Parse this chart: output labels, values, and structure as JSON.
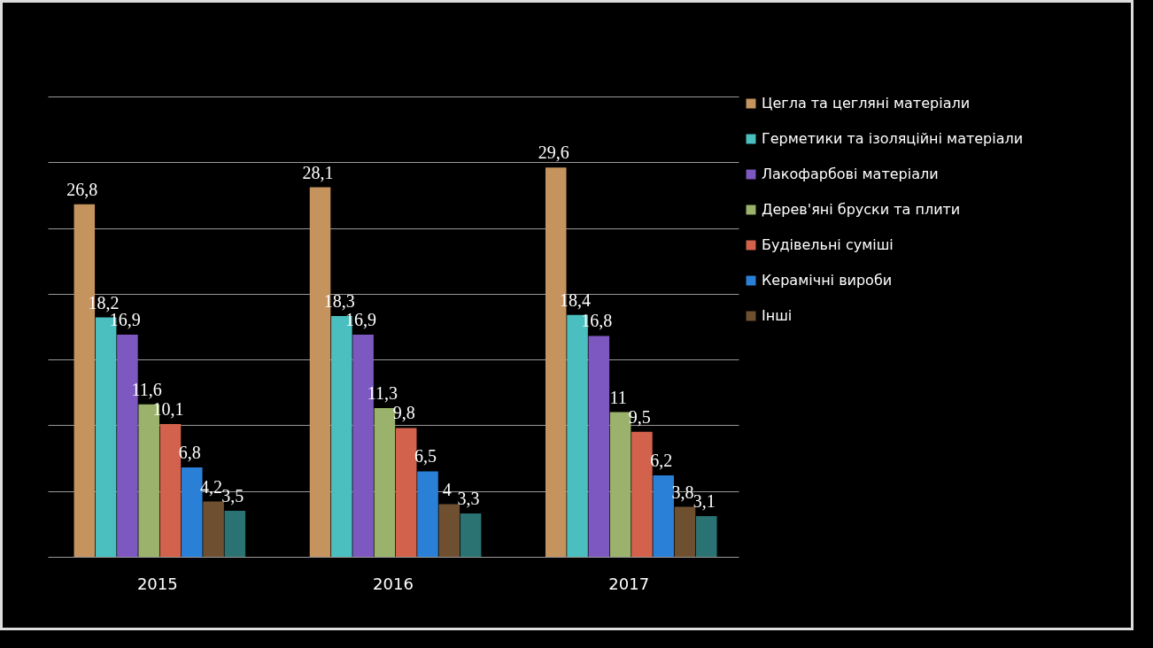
{
  "chart_data": {
    "type": "bar",
    "categories": [
      "2015",
      "2016",
      "2017"
    ],
    "series": [
      {
        "name": "Цегла та цегляні матеріали",
        "color": "#c4935e",
        "values": [
          26.8,
          28.1,
          29.6
        ],
        "value_labels": [
          "26,8",
          "28,1",
          "29,6"
        ]
      },
      {
        "name": "Герметики та ізоляційні матеріали",
        "color": "#4bbfbf",
        "values": [
          18.2,
          18.3,
          18.4
        ],
        "value_labels": [
          "18,2",
          "18,3",
          "18,4"
        ]
      },
      {
        "name": "Лакофарбові матеріали",
        "color": "#7d58c0",
        "values": [
          16.9,
          16.9,
          16.8
        ],
        "value_labels": [
          "16,9",
          "16,9",
          "16,8"
        ]
      },
      {
        "name": "Дерев'яні бруски та плити",
        "color": "#9bb26c",
        "values": [
          11.6,
          11.3,
          11
        ],
        "value_labels": [
          "11,6",
          "11,3",
          "11"
        ]
      },
      {
        "name": "Будівельні суміші",
        "color": "#d2624c",
        "values": [
          10.1,
          9.8,
          9.5
        ],
        "value_labels": [
          "10,1",
          "9,8",
          "9,5"
        ]
      },
      {
        "name": "Керамічні вироби",
        "color": "#2a80d6",
        "values": [
          6.8,
          6.5,
          6.2
        ],
        "value_labels": [
          "6,8",
          "6,5",
          "6,2"
        ]
      },
      {
        "name": "Інші",
        "color": "#6e5030",
        "values": [
          4.2,
          4,
          3.8
        ],
        "value_labels": [
          "4,2",
          "4",
          "3,8"
        ]
      },
      {
        "color": "#2b7272",
        "values": [
          3.5,
          3.3,
          3.1
        ],
        "value_labels": [
          "3,5",
          "3,3",
          "3,1"
        ]
      }
    ],
    "ylim": [
      0,
      35
    ],
    "yticks": [
      0,
      5,
      10,
      15,
      20,
      25,
      30,
      35
    ],
    "grid": "y",
    "tick_labels": "x",
    "legend": "right"
  }
}
